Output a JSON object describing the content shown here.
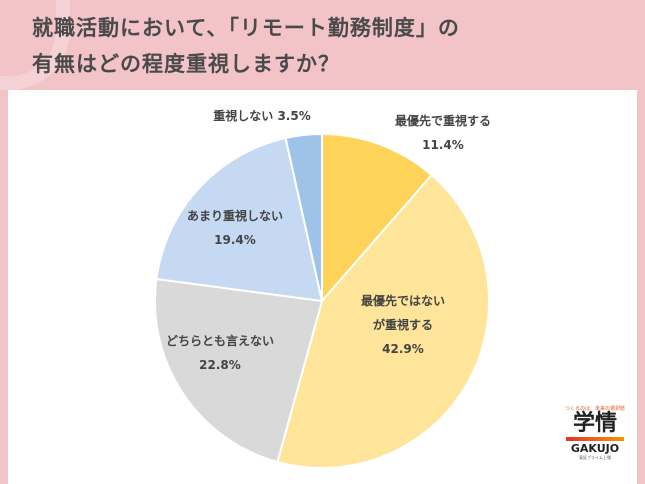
{
  "title_lines": [
    "就職活動において、「リモート勤務制度」の",
    "有無はどの程度重視しますか？"
  ],
  "logo": {
    "tagline": "つくるのは、未来の選択肢",
    "kanji": "学情",
    "name": "GAKUJO",
    "sub": "東証プライム上場"
  },
  "chart_data": {
    "type": "pie",
    "start": "top",
    "direction": "clockwise",
    "slices": [
      {
        "label": [
          "最優先で重視する"
        ],
        "value": 11.4,
        "value_label": "11.4%",
        "color": "#fdd35a"
      },
      {
        "label": [
          "最優先ではない",
          "が重視する"
        ],
        "value": 42.9,
        "value_label": "42.9%",
        "color": "#fee59a"
      },
      {
        "label": [
          "どちらとも言えない"
        ],
        "value": 22.8,
        "value_label": "22.8%",
        "color": "#d9d9d9"
      },
      {
        "label": [
          "あまり重視しない"
        ],
        "value": 19.4,
        "value_label": "19.4%",
        "color": "#c5daf2"
      },
      {
        "label": [
          "重視しない"
        ],
        "value": 3.5,
        "value_label": "3.5%",
        "color": "#9fc2e9"
      }
    ]
  }
}
